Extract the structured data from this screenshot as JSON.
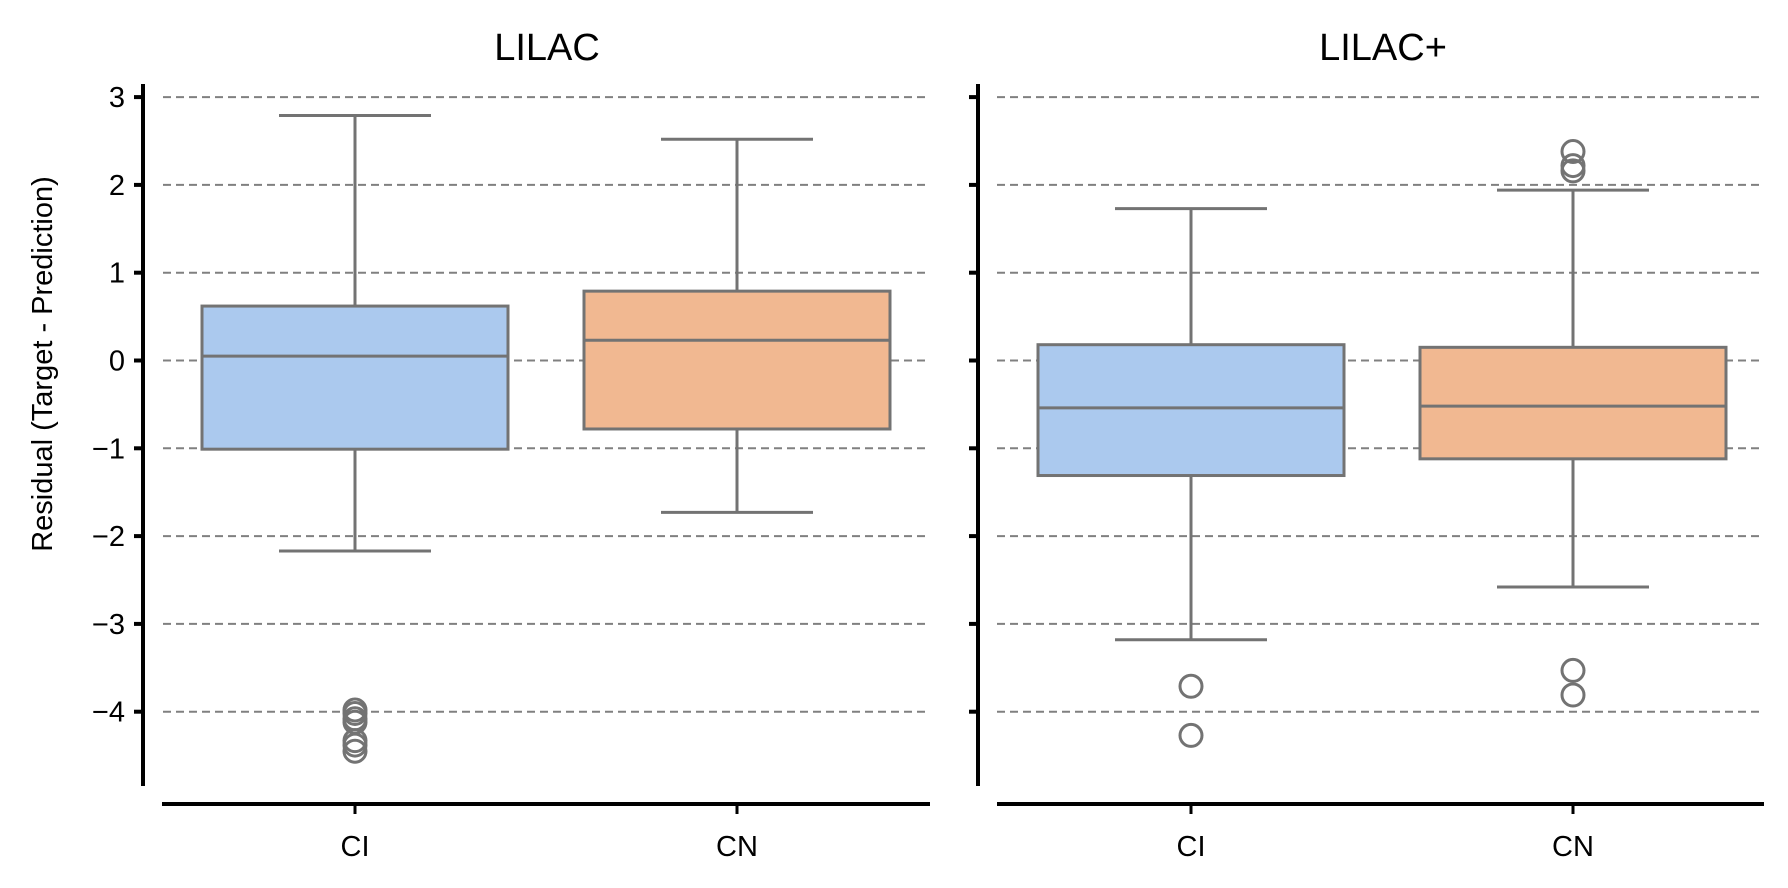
{
  "chart_data": {
    "type": "box",
    "ylabel": "Residual (Target - Prediction)",
    "ylim": [
      -5,
      3.2
    ],
    "yticks": [
      3,
      2,
      1,
      0,
      -1,
      -2,
      -3,
      -4
    ],
    "ytick_labels": [
      "3",
      "2",
      "1",
      "0",
      "−1",
      "−2",
      "−3",
      "−4"
    ],
    "grid": "horizontal-dashed",
    "categories": [
      "CI",
      "CN"
    ],
    "category_colors": [
      "#abc9ee",
      "#f1b891"
    ],
    "line_color": "#737373",
    "panels": [
      {
        "title": "LILAC",
        "boxes": [
          {
            "category": "CI",
            "whisker_low": -2.17,
            "q1": -1.01,
            "median": 0.05,
            "q3": 0.62,
            "whisker_high": 2.79,
            "outliers": [
              -3.98,
              -4.02,
              -4.08,
              -4.12,
              -4.33,
              -4.38,
              -4.45
            ]
          },
          {
            "category": "CN",
            "whisker_low": -1.73,
            "q1": -0.78,
            "median": 0.23,
            "q3": 0.79,
            "whisker_high": 2.52,
            "outliers": []
          }
        ]
      },
      {
        "title": "LILAC+",
        "boxes": [
          {
            "category": "CI",
            "whisker_low": -3.18,
            "q1": -1.31,
            "median": -0.54,
            "q3": 0.18,
            "whisker_high": 1.73,
            "outliers": [
              -3.71,
              -4.27
            ]
          },
          {
            "category": "CN",
            "whisker_low": -2.58,
            "q1": -1.12,
            "median": -0.52,
            "q3": 0.15,
            "whisker_high": 1.94,
            "outliers": [
              2.16,
              2.22,
              2.38,
              -3.53,
              -3.81
            ]
          }
        ]
      }
    ]
  }
}
